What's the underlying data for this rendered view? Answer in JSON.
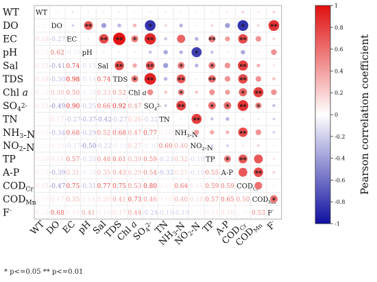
{
  "chart_data": {
    "type": "heatmap",
    "variables": [
      "WT",
      "DO",
      "EC",
      "pH",
      "Sal",
      "TDS",
      "Chl a",
      "SO42-",
      "TN",
      "NH3-N",
      "NO2-N",
      "TP",
      "A-P",
      "CODCr",
      "CODMn",
      "F-"
    ],
    "lower_triangle_values": [
      [],
      [
        -0.05
      ],
      [
        0.18,
        -0.27
      ],
      [
        0.1,
        0.62,
        -0.1
      ],
      [
        0.15,
        -0.41,
        0.74,
        -0.15
      ],
      [
        0.18,
        -0.3,
        0.98,
        -0.14,
        0.74
      ],
      [
        0.1,
        0.3,
        0.5,
        -0.1,
        0.33,
        0.52
      ],
      [
        0.15,
        -0.49,
        0.9,
        -0.25,
        0.66,
        0.92,
        0.47
      ],
      [
        0.05,
        0.17,
        -0.27,
        -0.37,
        -0.42,
        -0.27,
        0.26,
        -0.22
      ],
      [
        0.1,
        -0.34,
        0.68,
        -0.29,
        0.52,
        0.68,
        0.47,
        0.77,
        0.1
      ],
      [
        0.05,
        0.1,
        -0.17,
        -0.5,
        -0.22,
        -0.1,
        0.27,
        -0.1,
        0.6,
        0.4
      ],
      [
        0.1,
        0.16,
        0.57,
        -0.2,
        0.48,
        0.61,
        0.39,
        0.59,
        -0.23,
        0.32,
        -0.19
      ],
      [
        0.1,
        -0.39,
        0.31,
        -0.1,
        0.35,
        0.43,
        0.29,
        0.54,
        -0.32,
        0.21,
        -0.19,
        0.55
      ],
      [
        0.15,
        -0.47,
        0.75,
        -0.31,
        0.77,
        0.75,
        0.53,
        0.8,
        0.1,
        0.64,
        0.1,
        0.59,
        0.59
      ],
      [
        0.1,
        0.17,
        0.35,
        0.14,
        0.2,
        0.41,
        0.73,
        0.46,
        0.1,
        0.4,
        0.18,
        0.57,
        0.65,
        0.5
      ],
      [
        0.1,
        0.68,
        0.1,
        0.41,
        0.1,
        0.17,
        0.44,
        -0.24,
        -0.19,
        -0.19,
        0.05,
        0.11,
        0.16,
        0.05,
        0.53
      ]
    ],
    "upper_triangle_values": [
      [],
      [
        -0.05
      ],
      [
        -0.15,
        -0.2
      ],
      [
        -0.1,
        0.7,
        -0.1
      ],
      [
        -0.1,
        -0.4,
        0.75,
        -0.1
      ],
      [
        -0.1,
        -0.3,
        0.98,
        -0.1,
        0.74
      ],
      [
        -0.05,
        0.3,
        0.55,
        -0.1,
        0.35,
        0.55
      ],
      [
        -0.1,
        -0.85,
        0.9,
        -0.25,
        0.7,
        0.92,
        0.47
      ],
      [
        -0.1,
        0.2,
        -0.25,
        -0.35,
        -0.4,
        -0.3,
        0.25,
        -0.22
      ],
      [
        0.1,
        -0.3,
        0.65,
        -0.3,
        0.55,
        0.7,
        0.5,
        0.77,
        0.1
      ],
      [
        0.1,
        0.1,
        -0.3,
        -0.8,
        -0.3,
        -0.1,
        0.25,
        -0.15,
        0.8,
        0.4
      ],
      [
        0.1,
        0.2,
        0.55,
        -0.25,
        0.55,
        0.6,
        0.45,
        0.6,
        -0.25,
        0.35,
        -0.2
      ],
      [
        0.15,
        -0.4,
        0.4,
        -0.1,
        0.45,
        0.45,
        0.4,
        0.6,
        -0.3,
        0.3,
        -0.2,
        0.55
      ],
      [
        0.2,
        -0.85,
        0.75,
        -0.35,
        0.8,
        0.75,
        0.65,
        0.85,
        0.15,
        0.75,
        0.15,
        0.7,
        0.7
      ],
      [
        0.15,
        0.2,
        0.45,
        0.15,
        0.3,
        0.45,
        0.8,
        0.5,
        0.15,
        0.45,
        0.2,
        0.7,
        0.75,
        0.6
      ],
      [
        0.2,
        0.85,
        0.2,
        0.45,
        0.15,
        0.25,
        0.45,
        -0.25,
        -0.2,
        -0.2,
        0.1,
        0.15,
        0.2,
        0.1,
        0.6
      ]
    ],
    "significance": [
      [
        "",
        "",
        "",
        "",
        "",
        "",
        "",
        "",
        "",
        "",
        "",
        "",
        "",
        "",
        "",
        ""
      ],
      [
        "",
        "",
        "",
        "**",
        "",
        "",
        "",
        "*",
        "",
        "",
        "",
        "",
        "",
        "*",
        "",
        "**"
      ],
      [
        "",
        "",
        "",
        "",
        "**",
        "**",
        "*",
        "**",
        "",
        "",
        "",
        "**",
        "",
        "**",
        "",
        ""
      ],
      [
        "",
        "",
        "",
        "",
        "",
        "",
        "",
        "",
        "",
        "",
        "*",
        "",
        "",
        "",
        "",
        ""
      ],
      [
        "",
        "",
        "",
        "",
        "",
        "**",
        "",
        "**",
        "",
        "*",
        "",
        "*",
        "",
        "**",
        "",
        ""
      ],
      [
        "",
        "",
        "",
        "",
        "",
        "",
        "*",
        "**",
        "",
        "**",
        "",
        "**",
        "",
        "**",
        "",
        ""
      ],
      [
        "",
        "",
        "",
        "",
        "",
        "",
        "",
        "",
        "",
        "*",
        "",
        "",
        "",
        "*",
        "**",
        ""
      ],
      [
        "",
        "",
        "",
        "",
        "",
        "",
        "",
        "",
        "",
        "**",
        "",
        "*",
        "*",
        "**",
        "*",
        ""
      ],
      [
        "",
        "",
        "",
        "",
        "",
        "",
        "",
        "",
        "",
        "",
        "**",
        "",
        "",
        "",
        "",
        ""
      ],
      [
        "",
        "",
        "",
        "",
        "",
        "",
        "",
        "",
        "",
        "",
        "",
        "",
        "",
        "**",
        "",
        ""
      ],
      [
        "",
        "",
        "",
        "",
        "",
        "",
        "",
        "",
        "",
        "",
        "",
        "",
        "",
        "",
        "",
        ""
      ],
      [
        "",
        "",
        "",
        "",
        "",
        "",
        "",
        "",
        "",
        "",
        "",
        "",
        "*",
        "**",
        "",
        ""
      ],
      [
        "",
        "",
        "",
        "",
        "",
        "",
        "",
        "",
        "",
        "",
        "",
        "",
        "",
        "",
        "**",
        ""
      ],
      [
        "",
        "",
        "",
        "",
        "",
        "",
        "",
        "",
        "",
        "",
        "",
        "",
        "",
        "",
        "",
        ""
      ],
      [
        "",
        "",
        "",
        "",
        "",
        "",
        "",
        "",
        "",
        "",
        "",
        "",
        "",
        "",
        "",
        "*"
      ],
      [
        "",
        "",
        "",
        "",
        "",
        "",
        "",
        "",
        "",
        "",
        "",
        "",
        "",
        "",
        "",
        ""
      ]
    ],
    "colorbar": {
      "label": "Pearson correlation coefficient",
      "min": -1,
      "max": 1,
      "ticks": [
        1,
        0.8,
        0.6,
        0.4,
        0.2,
        0,
        -0.2,
        -0.4,
        -0.6,
        -0.8,
        -1
      ],
      "tick_labels": [
        "1",
        "0.8",
        "0.6",
        "0.4",
        "0.2",
        "0",
        "-0.2",
        "-0.4",
        "-0.6",
        "-0.8",
        "-1"
      ],
      "colors": {
        "negative": "#1010a0",
        "zero": "#ffffff",
        "positive": "#e01010"
      }
    },
    "footnote": "* p<=0.05   ** p<=0.01"
  }
}
